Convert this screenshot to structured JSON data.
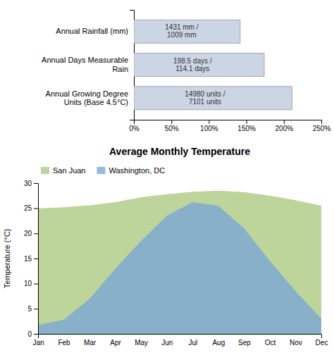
{
  "chart_data": [
    {
      "type": "bar",
      "orientation": "horizontal",
      "categories": [
        "Annual Rainfall (mm)",
        "Annual Days Measurable\nRain",
        "Annual Growing Degree\nUnits (Base 4.5°C)"
      ],
      "values": [
        141.8,
        173.9,
        210.9
      ],
      "color": "#ccd5e3",
      "annotations": [
        "1431 mm /\n1009 mm",
        "198.5 days /\n114.1 days",
        "14980 units /\n7101 units"
      ],
      "xlim": [
        0,
        250
      ],
      "xticks": [
        {
          "value": 0,
          "label": "0%"
        },
        {
          "value": 50,
          "label": "50%"
        },
        {
          "value": 100,
          "label": "100%"
        },
        {
          "value": 150,
          "label": "150%"
        },
        {
          "value": 200,
          "label": "200%"
        },
        {
          "value": 250,
          "label": "250%"
        }
      ]
    },
    {
      "type": "area",
      "title": "Average Monthly Temperature",
      "ylabel": "Temperature (°C)",
      "categories": [
        "Jan",
        "Feb",
        "Mar",
        "Apr",
        "May",
        "Jun",
        "Jul",
        "Aug",
        "Sep",
        "Oct",
        "Nov",
        "Dec"
      ],
      "series": [
        {
          "name": "San Juan",
          "color": "#b2ce8a",
          "values": [
            25.0,
            25.2,
            25.6,
            26.2,
            27.2,
            27.8,
            28.3,
            28.5,
            28.2,
            27.5,
            26.6,
            25.5
          ]
        },
        {
          "name": "Washington, DC",
          "color": "#7ba7d4",
          "values": [
            1.8,
            2.8,
            7.0,
            13.0,
            18.5,
            23.5,
            26.2,
            25.5,
            21.0,
            14.5,
            8.5,
            3.0
          ]
        }
      ],
      "ylim": [
        0,
        30
      ],
      "yticks": [
        0,
        5,
        10,
        15,
        20,
        25,
        30
      ],
      "legend": "upper left"
    }
  ]
}
